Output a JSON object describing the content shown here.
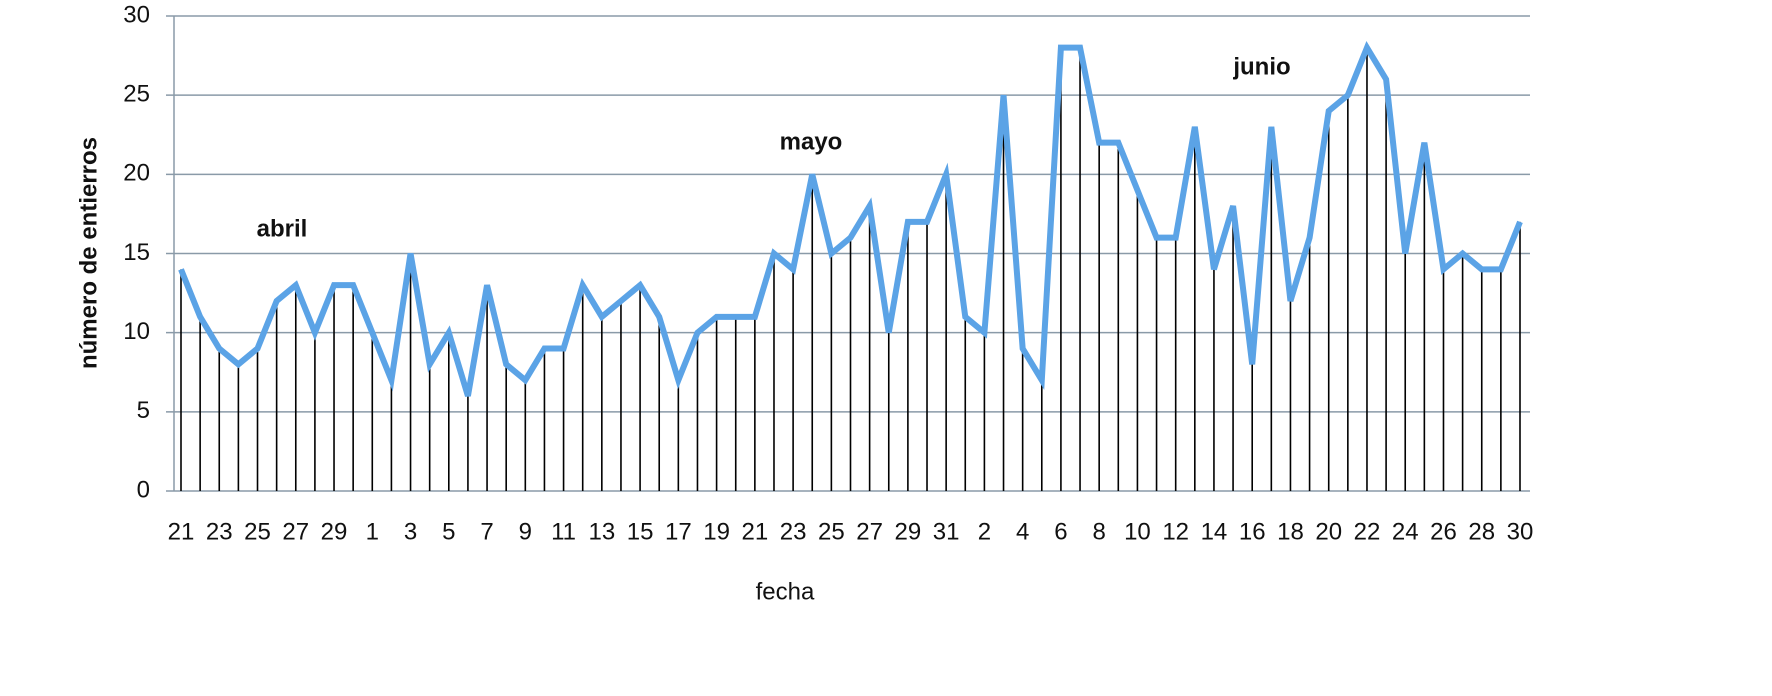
{
  "chart_data": {
    "type": "line",
    "x_label": "fecha",
    "y_label": "número de entierros",
    "annotations": [
      "abril",
      "mayo",
      "junio"
    ],
    "categories": [
      "21",
      null,
      "23",
      null,
      "25",
      null,
      "27",
      null,
      "29",
      null,
      "1",
      null,
      "3",
      null,
      "5",
      null,
      "7",
      null,
      "9",
      null,
      "11",
      null,
      "13",
      null,
      "15",
      null,
      "17",
      null,
      "19",
      null,
      "21",
      null,
      "23",
      null,
      "25",
      null,
      "27",
      null,
      "29",
      null,
      "31",
      null,
      "2",
      null,
      "4",
      null,
      "6",
      null,
      "8",
      null,
      "10",
      null,
      "12",
      null,
      "14",
      null,
      "16",
      null,
      "18",
      null,
      "20",
      null,
      "22",
      null,
      "24",
      null,
      "26",
      null,
      "28",
      null,
      "30"
    ],
    "series": [
      {
        "color": "#5ba3e6",
        "values": [
          14,
          11,
          9,
          8,
          9,
          12,
          13,
          10,
          13,
          13,
          10,
          7,
          15,
          8,
          10,
          6,
          13,
          8,
          7,
          9,
          9,
          13,
          11,
          12,
          13,
          11,
          7,
          10,
          11,
          11,
          11,
          15,
          14,
          20,
          15,
          16,
          18,
          10,
          17,
          17,
          20,
          11,
          10,
          25,
          9,
          7,
          28,
          28,
          22,
          22,
          19,
          16,
          16,
          23,
          14,
          18,
          8,
          23,
          12,
          16,
          24,
          25,
          28,
          26,
          15,
          22,
          14,
          15,
          14,
          14,
          17
        ]
      }
    ],
    "drop_lines": true,
    "ylim": [
      0,
      30
    ],
    "yticks": [
      0,
      5,
      10,
      15,
      20,
      25,
      30
    ],
    "grid": true
  }
}
